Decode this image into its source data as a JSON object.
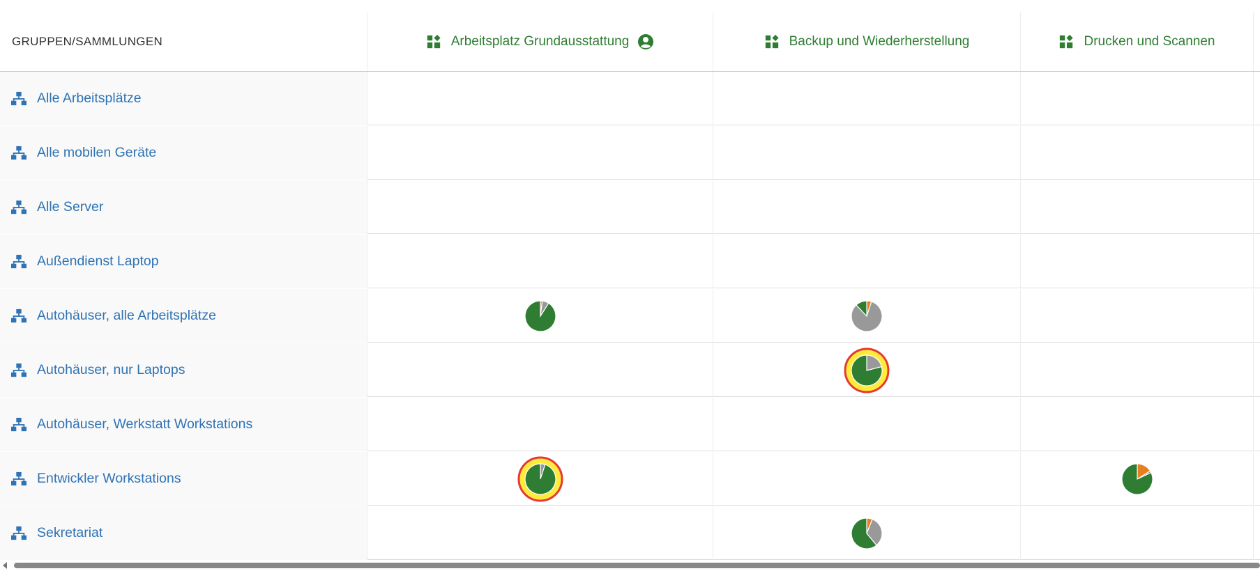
{
  "header": {
    "first_column": "GRUPPEN/SAMMLUNGEN",
    "columns": [
      {
        "label": "Arbeitsplatz Grundausstattung",
        "icon": "widgets-icon",
        "has_user_icon": true
      },
      {
        "label": "Backup und Wiederherstellung",
        "icon": "widgets-icon",
        "has_user_icon": false
      },
      {
        "label": "Drucken und Scannen",
        "icon": "widgets-icon",
        "has_user_icon": false
      }
    ]
  },
  "colors": {
    "green": "#2e7d32",
    "gray": "#999999",
    "orange": "#e67e22",
    "highlight_yellow": "#ffeb3b",
    "highlight_red": "#e53935",
    "link_blue": "#2f73b5"
  },
  "rows": [
    {
      "label": "Alle Arbeitsplätze",
      "icon": "network-icon",
      "cells": [
        null,
        null,
        null
      ]
    },
    {
      "label": "Alle mobilen Geräte",
      "icon": "network-icon",
      "cells": [
        null,
        null,
        null
      ]
    },
    {
      "label": "Alle Server",
      "icon": "network-icon",
      "cells": [
        null,
        null,
        null
      ]
    },
    {
      "label": "Außendienst Laptop",
      "icon": "network-icon",
      "cells": [
        null,
        null,
        null
      ]
    },
    {
      "label": "Autohäuser, alle Arbeitsplätze",
      "icon": "network-icon",
      "cells": [
        {
          "green": 91,
          "gray": 7,
          "orange": 2,
          "highlight": false
        },
        {
          "green": 12,
          "gray": 83,
          "orange": 5,
          "highlight": false
        },
        null
      ]
    },
    {
      "label": "Autohäuser, nur Laptops",
      "icon": "network-icon",
      "cells": [
        null,
        {
          "green": 79,
          "gray": 21,
          "orange": 0,
          "highlight": true
        },
        null
      ]
    },
    {
      "label": "Autohäuser, Werkstatt Workstations",
      "icon": "network-icon",
      "cells": [
        null,
        null,
        null
      ]
    },
    {
      "label": "Entwickler Workstations",
      "icon": "network-icon",
      "cells": [
        {
          "green": 95,
          "gray": 5,
          "orange": 0,
          "highlight": true
        },
        null,
        {
          "green": 82,
          "gray": 2,
          "orange": 16,
          "highlight": false
        }
      ]
    },
    {
      "label": "Sekretariat",
      "icon": "network-icon",
      "cells": [
        null,
        {
          "green": 61,
          "gray": 33,
          "orange": 6,
          "highlight": false
        },
        null
      ]
    }
  ]
}
